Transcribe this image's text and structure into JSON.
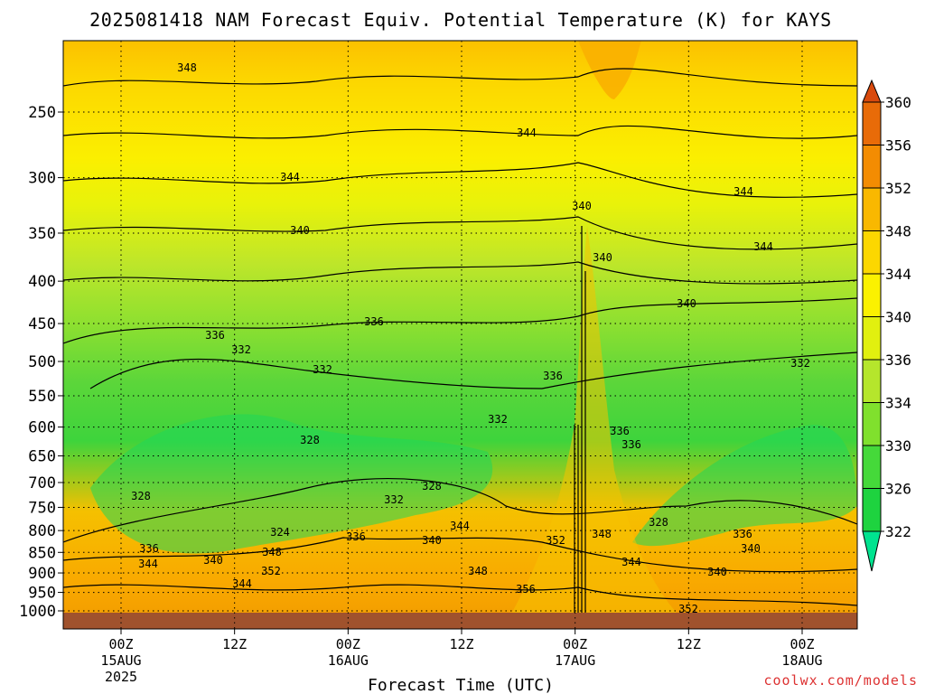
{
  "chart_data": {
    "type": "heatmap",
    "title": "2025081418 NAM Forecast Equiv. Potential Temperature (K) for KAYS",
    "xlabel": "Forecast Time (UTC)",
    "ylabel": "",
    "x_axis": {
      "ticks": [
        {
          "hour": 6,
          "lines": [
            "00Z",
            "15AUG",
            "2025"
          ]
        },
        {
          "hour": 18,
          "lines": [
            "12Z"
          ]
        },
        {
          "hour": 30,
          "lines": [
            "00Z",
            "16AUG"
          ]
        },
        {
          "hour": 42,
          "lines": [
            "12Z"
          ]
        },
        {
          "hour": 54,
          "lines": [
            "00Z",
            "17AUG"
          ]
        },
        {
          "hour": 66,
          "lines": [
            "12Z"
          ]
        },
        {
          "hour": 78,
          "lines": [
            "00Z",
            "18AUG"
          ]
        }
      ],
      "range_hours": [
        0,
        84
      ],
      "start_time": "2025081418"
    },
    "y_axis": {
      "units": "hPa",
      "scale": "log-pressure",
      "range": [
        1000,
        200
      ],
      "ticks": [
        250,
        300,
        350,
        400,
        450,
        500,
        550,
        600,
        650,
        700,
        750,
        800,
        850,
        900,
        950,
        1000
      ]
    },
    "colorbar": {
      "levels": [
        322,
        326,
        330,
        334,
        336,
        340,
        344,
        348,
        352,
        356,
        360
      ],
      "colors": [
        "#00e38f",
        "#1ed33f",
        "#45d93a",
        "#80e02d",
        "#b5e62c",
        "#e1f00f",
        "#fbf100",
        "#fcd700",
        "#f9b800",
        "#f38c02",
        "#e86b08",
        "#d94a0d"
      ]
    },
    "contour_labels": [
      "348",
      "344",
      "344",
      "344",
      "340",
      "340",
      "340",
      "344",
      "340",
      "336",
      "336",
      "336",
      "332",
      "332",
      "332",
      "332",
      "336",
      "328",
      "328",
      "328",
      "324",
      "336",
      "336",
      "344",
      "340",
      "340",
      "328",
      "332",
      "348",
      "344",
      "340",
      "336",
      "344",
      "348",
      "352",
      "356",
      "348",
      "352",
      "336",
      "344",
      "340",
      "352"
    ],
    "grid": true,
    "legend": "right",
    "ground_color": "#a0522d"
  },
  "credit": "coolwx.com/models"
}
